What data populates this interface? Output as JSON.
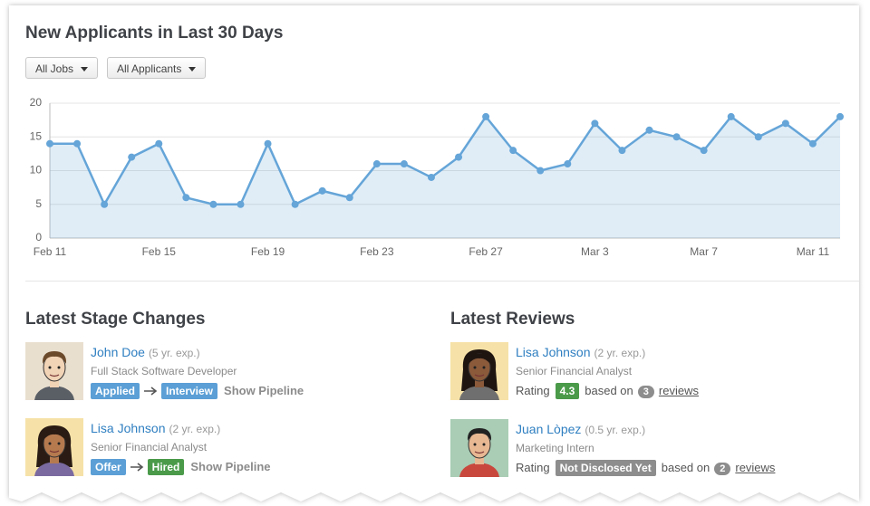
{
  "filters": [
    "All Jobs",
    "All Applicants"
  ],
  "chart_data": {
    "type": "line",
    "title": "New Applicants in Last 30 Days",
    "categories": [
      "Feb 11",
      null,
      null,
      null,
      "Feb 15",
      null,
      null,
      null,
      "Feb 19",
      null,
      null,
      null,
      "Feb 23",
      null,
      null,
      null,
      "Feb 27",
      null,
      null,
      null,
      "Mar 3",
      null,
      null,
      null,
      "Mar 7",
      null,
      null,
      null,
      "Mar 11",
      null
    ],
    "values": [
      14,
      14,
      5,
      12,
      14,
      6,
      5,
      5,
      14,
      5,
      7,
      6,
      11,
      11,
      9,
      12,
      18,
      13,
      10,
      11,
      17,
      13,
      16,
      15,
      13,
      18,
      15,
      17,
      14,
      18
    ],
    "color": "#65a5d8",
    "area": true,
    "grid": true,
    "ylim": [
      0,
      20
    ],
    "yticks": [
      0,
      5,
      10,
      15,
      20
    ]
  },
  "stage_changes": {
    "title": "Latest Stage Changes",
    "items": [
      {
        "name": "John Doe",
        "experience": "(5 yr. exp.)",
        "role": "Full Stack Software Developer",
        "from": "Applied",
        "to": "Interview",
        "link": "Show Pipeline"
      },
      {
        "name": "Lisa Johnson",
        "experience": "(2 yr. exp.)",
        "role": "Senior Financial Analyst",
        "from": "Offer",
        "to": "Hired",
        "link": "Show Pipeline"
      }
    ]
  },
  "reviews": {
    "title": "Latest Reviews",
    "items": [
      {
        "name": "Lisa Johnson",
        "experience": "(2 yr. exp.)",
        "role": "Senior Financial Analyst",
        "rating_label": "Rating",
        "rating": 4.3,
        "based_on": "based on",
        "count": 3,
        "link": "reviews"
      },
      {
        "name": "Juan Lòpez",
        "experience": "(0.5 yr. exp.)",
        "role": "Marketing Intern",
        "rating_label": "Rating",
        "rating": "Not Disclosed Yet",
        "based_on": "based on",
        "count": 2,
        "link": "reviews"
      }
    ]
  }
}
